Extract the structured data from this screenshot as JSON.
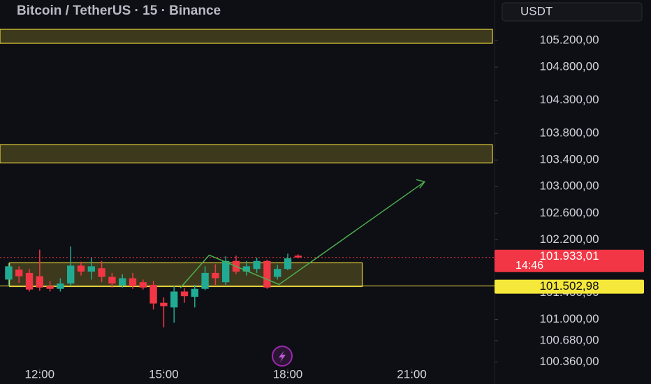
{
  "chart_data": {
    "type": "candlestick",
    "title": "Bitcoin / TetherUS · 15 · Binance",
    "currency": "USDT",
    "up_color": "#22ab94",
    "down_color": "#f23645",
    "xlim": [
      11.04,
      22.95
    ],
    "xticks": [
      {
        "value": 12,
        "label": "12:00"
      },
      {
        "value": 15,
        "label": "15:00"
      },
      {
        "value": 18,
        "label": "18:00"
      },
      {
        "value": 21,
        "label": "21:00"
      }
    ],
    "ylim": [
      100290,
      105810
    ],
    "yticks": [
      {
        "value": 105200,
        "label": "105.200,00"
      },
      {
        "value": 104800,
        "label": "104.800,00"
      },
      {
        "value": 104300,
        "label": "104.300,00"
      },
      {
        "value": 103800,
        "label": "103.800,00"
      },
      {
        "value": 103400,
        "label": "103.400,00"
      },
      {
        "value": 103000,
        "label": "103.000,00"
      },
      {
        "value": 102600,
        "label": "102.600,00"
      },
      {
        "value": 102200,
        "label": "102.200,00"
      },
      {
        "value": 101400,
        "label": "101.400,00"
      },
      {
        "value": 101000,
        "label": "101.000,00"
      },
      {
        "value": 100680,
        "label": "100.680,00"
      },
      {
        "value": 100360,
        "label": "100.360,00"
      }
    ],
    "x": [
      11.25,
      11.5,
      11.75,
      12,
      12.25,
      12.5,
      12.75,
      13,
      13.25,
      13.5,
      13.75,
      14,
      14.25,
      14.5,
      14.75,
      15,
      15.25,
      15.5,
      15.75,
      16,
      16.25,
      16.5,
      16.75,
      17,
      17.25,
      17.5,
      17.75,
      18,
      18.25
    ],
    "open": [
      101600,
      101750,
      101700,
      101650,
      101500,
      101460,
      101540,
      101810,
      101720,
      101770,
      101640,
      101510,
      101620,
      101560,
      101520,
      101250,
      101180,
      101420,
      101340,
      101460,
      101700,
      101560,
      101880,
      101720,
      101760,
      101880,
      101640,
      101760,
      101960
    ],
    "high": [
      101850,
      101800,
      101760,
      102050,
      101580,
      101620,
      102100,
      101870,
      101930,
      101880,
      101700,
      101680,
      101700,
      101600,
      101580,
      101330,
      101500,
      101470,
      101520,
      101800,
      101830,
      101950,
      101960,
      101880,
      101930,
      101900,
      101820,
      101990,
      101980
    ],
    "low": [
      101500,
      101550,
      101420,
      101430,
      101420,
      101420,
      101500,
      101660,
      101600,
      101560,
      101480,
      101480,
      101460,
      101450,
      101150,
      100880,
      100950,
      101250,
      101180,
      101440,
      101520,
      101520,
      101680,
      101660,
      101700,
      101460,
      101600,
      101740,
      101920
    ],
    "close": [
      101800,
      101650,
      101450,
      101480,
      101460,
      101540,
      101810,
      101720,
      101800,
      101640,
      101540,
      101620,
      101500,
      101480,
      101240,
      101200,
      101420,
      101350,
      101460,
      101700,
      101620,
      101880,
      101720,
      101800,
      101880,
      101480,
      101760,
      101920,
      101933.01
    ],
    "zones": [
      {
        "x": [
          11.04,
          22.95
        ],
        "low": 105158,
        "high": 105368,
        "color": "#e6d33d"
      },
      {
        "x": [
          11.04,
          22.95
        ],
        "low": 103357,
        "high": 103631,
        "color": "#e6d33d"
      },
      {
        "x": [
          11.27,
          19.8
        ],
        "low": 101494,
        "high": 101852,
        "color": "#e6d33d"
      }
    ],
    "projection": {
      "x": [
        15.4,
        16.1,
        17.79,
        21.31
      ],
      "values": [
        101473,
        101968,
        101526,
        103073
      ],
      "color": "#4caf50"
    },
    "last_price": {
      "value": 101933.01,
      "label": "101.933,01"
    },
    "countdown": "14:46",
    "level": {
      "value": 101502.98,
      "label": "101.502,98"
    }
  }
}
